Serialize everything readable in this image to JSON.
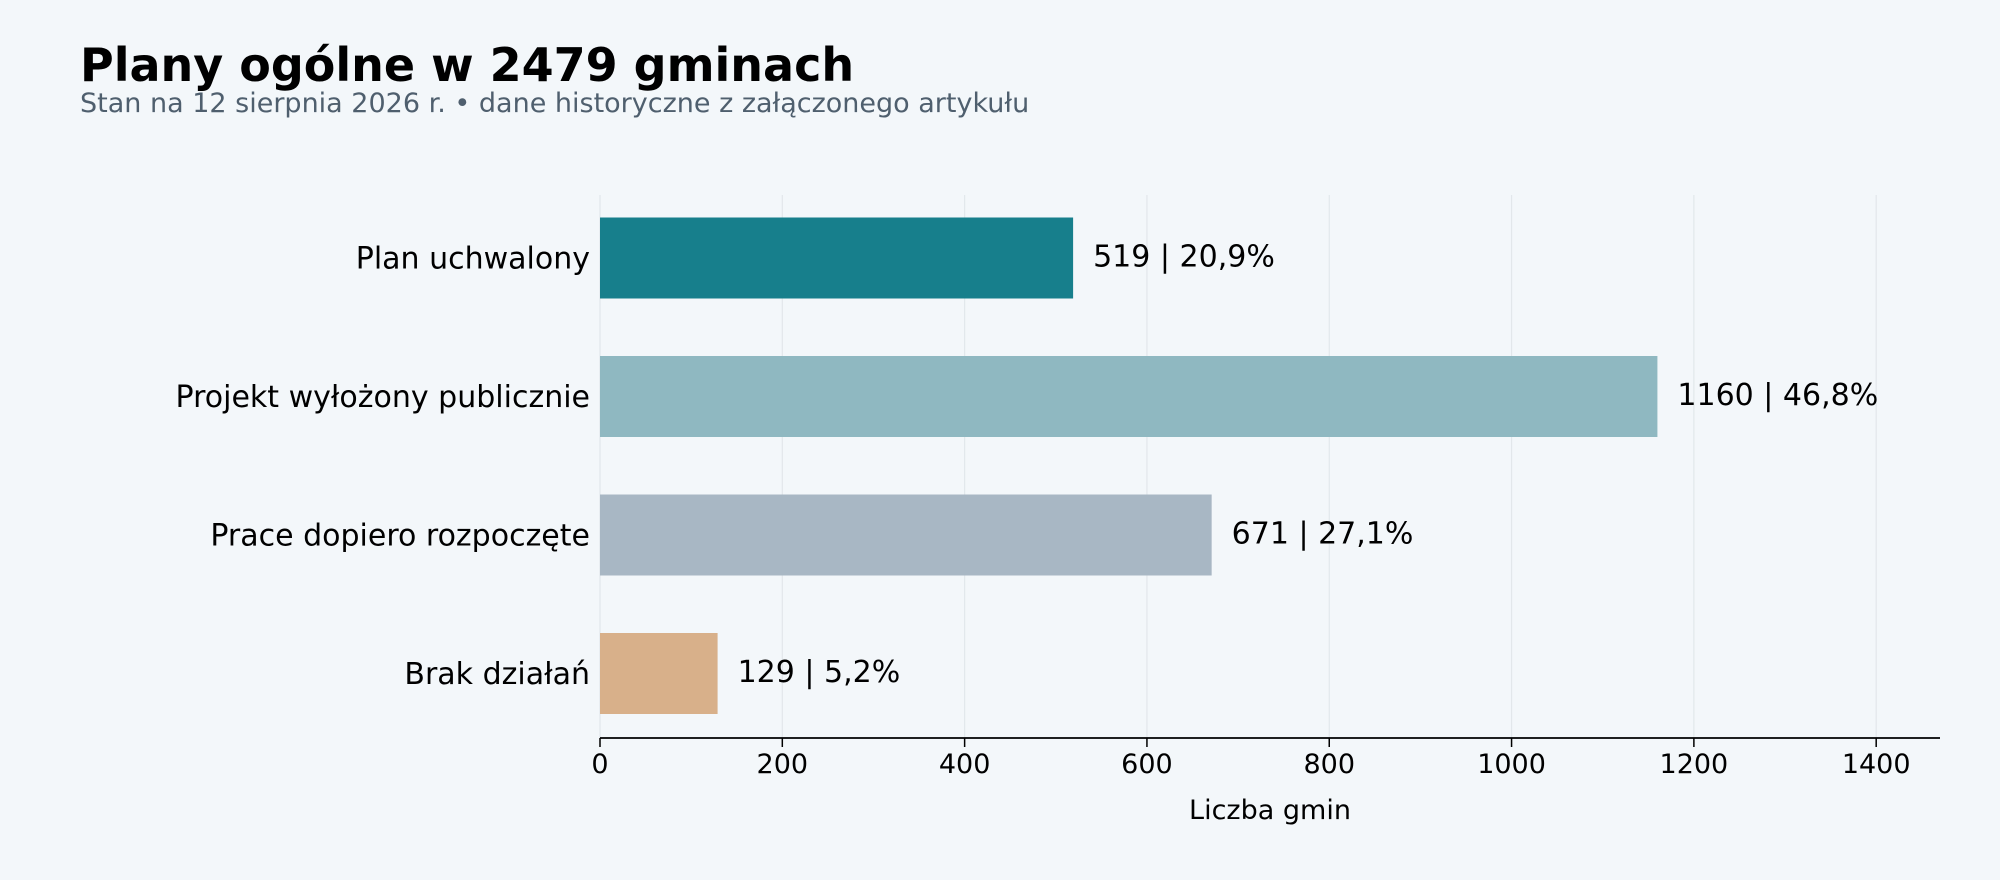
{
  "header": {
    "title": "Plany ogólne w 2479 gminach",
    "subtitle": "Stan na 12 sierpnia 2026 r. • dane historyczne z załączonego artykułu"
  },
  "chart_data": {
    "type": "bar",
    "orientation": "horizontal",
    "title": "Plany ogólne w 2479 gminach",
    "subtitle": "Stan na 12 sierpnia 2026 r. • dane historyczne z załączonego artykułu",
    "xlabel": "Liczba gmin",
    "ylabel": "",
    "categories": [
      "Plan uchwalony",
      "Projekt wyłożony publicznie",
      "Prace dopiero rozpoczęte",
      "Brak działań"
    ],
    "values": [
      519,
      1160,
      671,
      129
    ],
    "value_labels": [
      "519  |  20,9%",
      "1160  |  46,8%",
      "671  |  27,1%",
      "129  |  5,2%"
    ],
    "colors": [
      "#177f8c",
      "#8fb8c1",
      "#a8b7c4",
      "#d8b08a"
    ],
    "xlim": [
      0,
      1470
    ],
    "xticks": [
      0,
      200,
      400,
      600,
      800,
      1000,
      1200,
      1400
    ],
    "grid": "vertical",
    "legend": "none"
  }
}
